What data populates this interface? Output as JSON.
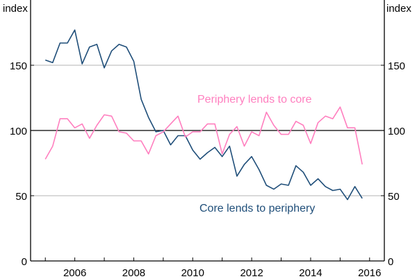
{
  "chart_data": {
    "type": "line",
    "title": "",
    "xlabel": "",
    "ylabel": "index",
    "y_unit_left": "index",
    "y_unit_right": "index",
    "ylim": [
      0,
      200
    ],
    "yticks": [
      0,
      50,
      100,
      150
    ],
    "xlim": [
      2004.5,
      2016.5
    ],
    "xticks": [
      2006,
      2008,
      2010,
      2012,
      2014,
      2016
    ],
    "xtick_labels": [
      "2006",
      "2008",
      "2010",
      "2012",
      "2014",
      "2016"
    ],
    "reference_line": 100,
    "grid": true,
    "colors": {
      "core_lends_to_periphery": "#1f4e79",
      "periphery_lends_to_core": "#ff7fbf",
      "grid": "#b3b3b3",
      "reference": "#000000"
    },
    "series": [
      {
        "name": "Core lends to periphery",
        "x": [
          2005.0,
          2005.25,
          2005.5,
          2005.75,
          2006.0,
          2006.25,
          2006.5,
          2006.75,
          2007.0,
          2007.25,
          2007.5,
          2007.75,
          2008.0,
          2008.25,
          2008.5,
          2008.75,
          2009.0,
          2009.25,
          2009.5,
          2009.75,
          2010.0,
          2010.25,
          2010.5,
          2010.75,
          2011.0,
          2011.25,
          2011.5,
          2011.75,
          2012.0,
          2012.25,
          2012.5,
          2012.75,
          2013.0,
          2013.25,
          2013.5,
          2013.75,
          2014.0,
          2014.25,
          2014.5,
          2014.75,
          2015.0,
          2015.25,
          2015.5,
          2015.75,
          2016.0
        ],
        "values": [
          154,
          152,
          167,
          167,
          177,
          151,
          164,
          166,
          148,
          161,
          166,
          164,
          153,
          124,
          110,
          99,
          100,
          89,
          96,
          96,
          85,
          78,
          83,
          87,
          80,
          88,
          65,
          74,
          80,
          70,
          58,
          55,
          59,
          58,
          73,
          68,
          58,
          63,
          57,
          54,
          55,
          47,
          57,
          48,
          null
        ]
      },
      {
        "name": "Periphery lends to core",
        "x": [
          2005.0,
          2005.25,
          2005.5,
          2005.75,
          2006.0,
          2006.25,
          2006.5,
          2006.75,
          2007.0,
          2007.25,
          2007.5,
          2007.75,
          2008.0,
          2008.25,
          2008.5,
          2008.75,
          2009.0,
          2009.25,
          2009.5,
          2009.75,
          2010.0,
          2010.25,
          2010.5,
          2010.75,
          2011.0,
          2011.25,
          2011.5,
          2011.75,
          2012.0,
          2012.25,
          2012.5,
          2012.75,
          2013.0,
          2013.25,
          2013.5,
          2013.75,
          2014.0,
          2014.25,
          2014.5,
          2014.75,
          2015.0,
          2015.25,
          2015.5,
          2015.75,
          2016.0
        ],
        "values": [
          78,
          88,
          109,
          109,
          102,
          105,
          94,
          104,
          112,
          111,
          99,
          98,
          92,
          92,
          82,
          96,
          99,
          105,
          111,
          95,
          99,
          99,
          105,
          105,
          82,
          97,
          103,
          88,
          99,
          96,
          114,
          104,
          97,
          97,
          107,
          104,
          90,
          106,
          111,
          109,
          118,
          102,
          102,
          74,
          null
        ]
      }
    ],
    "annotations": [
      {
        "text": "Periphery lends to core",
        "series": "Periphery lends to core"
      },
      {
        "text": "Core lends to periphery",
        "series": "Core lends to periphery"
      }
    ]
  }
}
